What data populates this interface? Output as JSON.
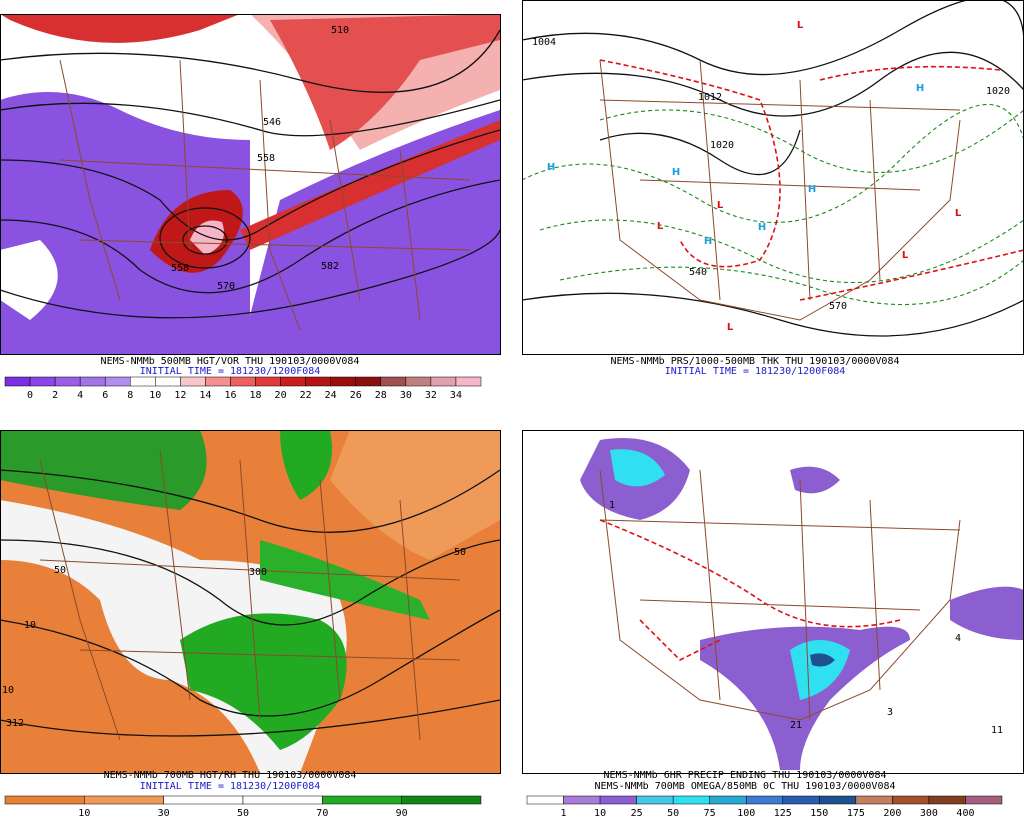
{
  "panels": [
    {
      "caption": [
        "NEMS-NMMb 500MB HGT/VOR THU 190103/0000V084",
        "INITIAL TIME = 181230/1200F084"
      ],
      "colorbar": {
        "labels": [
          "0",
          "2",
          "4",
          "6",
          "8",
          "10",
          "12",
          "14",
          "16",
          "18",
          "20",
          "22",
          "24",
          "26",
          "28",
          "30",
          "32",
          "34"
        ],
        "colors": [
          "#7b2fe0",
          "#8a46e6",
          "#9a5ee8",
          "#a274e6",
          "#b08ef0",
          "#ffffff",
          "#ffffff",
          "#f8c8c8",
          "#f49090",
          "#ee6060",
          "#e03a3a",
          "#c81e1e",
          "#b41414",
          "#9a0e0e",
          "#8a1010",
          "#a05050",
          "#c08080",
          "#e0a0b0",
          "#f7b6c8"
        ]
      },
      "map_labels": [
        "510",
        "546",
        "558",
        "582",
        "570",
        "558"
      ]
    },
    {
      "caption": [
        "NEMS-NMMb PRS/1000-500MB THK THU 190103/0000V084",
        "INITIAL TIME = 181230/1200F084"
      ],
      "map_labels": [
        "L",
        "L",
        "L",
        "L",
        "L",
        "L",
        "H",
        "H",
        "H",
        "H",
        "H",
        "H",
        "1012",
        "1020",
        "1020",
        "570",
        "540",
        "1004"
      ]
    },
    {
      "caption": [
        "NEMS-NMMb 700MB HGT/RH THU 190103/0000V084",
        "INITIAL TIME = 181230/1200F084"
      ],
      "colorbar": {
        "labels": [
          "10",
          "30",
          "50",
          "70",
          "90"
        ],
        "colors": [
          "#e8803a",
          "#f09a5a",
          "#ffffff",
          "#ffffff",
          "#22aa22",
          "#118811"
        ]
      },
      "map_labels": [
        "50",
        "10",
        "300",
        "312",
        "10",
        "50"
      ]
    },
    {
      "caption": [
        "NEMS-NMMb 6HR PRECIP ENDING THU 190103/0000V084",
        "NEMS-NMMb 700MB OMEGA/850MB 0C THU 190103/0000V084"
      ],
      "colorbar": {
        "labels": [
          "1",
          "10",
          "25",
          "50",
          "75",
          "100",
          "125",
          "150",
          "175",
          "200",
          "300",
          "400"
        ],
        "colors": [
          "#ffffff",
          "#a77bd6",
          "#8b5fcf",
          "#45c8e6",
          "#30e0f0",
          "#2aa8d0",
          "#3b7bd0",
          "#2e5bb0",
          "#205090",
          "#c08060",
          "#a05030",
          "#804020",
          "#a06080"
        ]
      },
      "map_labels": [
        "1",
        "11",
        "21",
        "3",
        "4"
      ]
    }
  ]
}
